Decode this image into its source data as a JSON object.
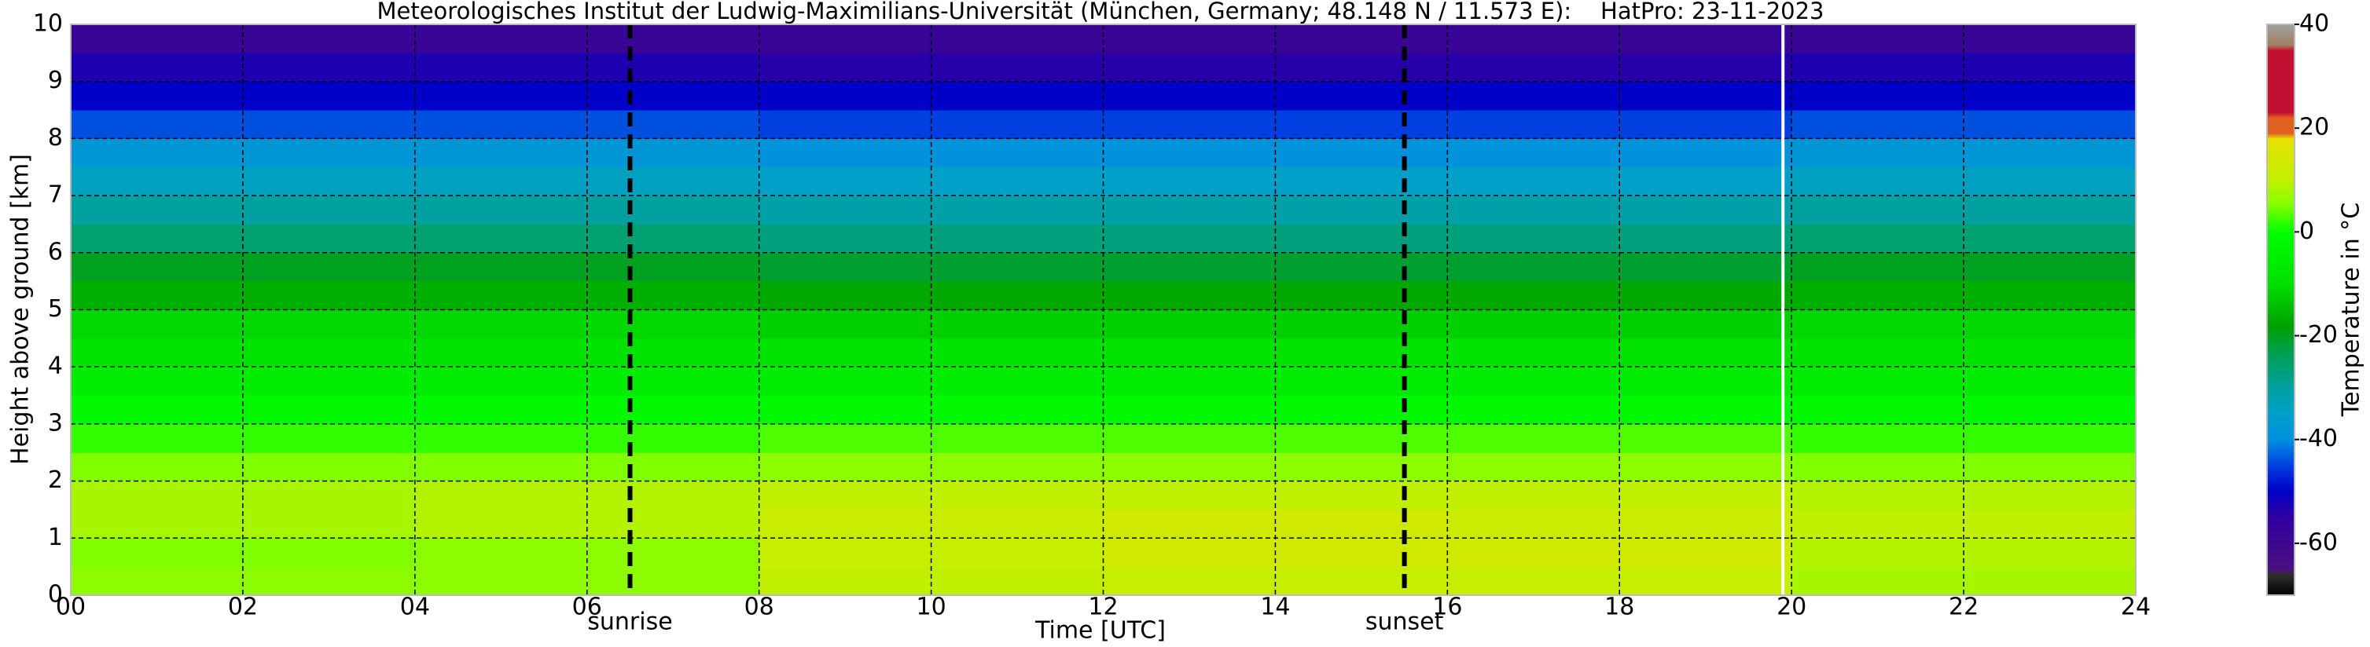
{
  "chart_data": {
    "type": "heatmap",
    "title": "Meteorologisches Institut der Ludwig-Maximilians-Universität (München, Germany; 48.148 N / 11.573 E):    HatPro: 23-11-2023",
    "xlabel": "Time [UTC]",
    "ylabel": "Height above ground [km]",
    "colorbar_label": "Temperature in °C",
    "x_bins": [
      0,
      4,
      8,
      12,
      16,
      20,
      24
    ],
    "y_bins": [
      0,
      0.5,
      1,
      1.5,
      2,
      2.5,
      3,
      3.5,
      4,
      4.5,
      5,
      5.5,
      6,
      6.5,
      7,
      7.5,
      8,
      8.5,
      9,
      9.5,
      10
    ],
    "values": [
      [
        6,
        5,
        8,
        8,
        5,
        2,
        -2,
        -6,
        -9,
        -11,
        -16,
        -20,
        -26,
        -30,
        -34,
        -38,
        -44,
        -50,
        -53,
        -58
      ],
      [
        6,
        6,
        9,
        9,
        5,
        2,
        -2,
        -6,
        -9,
        -11,
        -16,
        -20,
        -26,
        -30,
        -34,
        -38,
        -44,
        -50,
        -53,
        -58
      ],
      [
        10,
        11,
        12,
        10,
        6,
        3,
        -2,
        -6,
        -9,
        -12,
        -17,
        -21,
        -27,
        -31,
        -35,
        -39,
        -45,
        -50,
        -54,
        -58
      ],
      [
        11,
        13,
        13,
        10,
        6,
        3,
        -2,
        -6,
        -9,
        -12,
        -17,
        -21,
        -27,
        -31,
        -35,
        -39,
        -45,
        -50,
        -54,
        -58
      ],
      [
        11,
        13,
        12,
        10,
        6,
        3,
        -2,
        -6,
        -9,
        -12,
        -17,
        -21,
        -27,
        -31,
        -35,
        -39,
        -45,
        -50,
        -54,
        -58
      ],
      [
        8,
        9,
        10,
        9,
        5,
        2,
        -2,
        -6,
        -9,
        -11,
        -16,
        -20,
        -26,
        -30,
        -34,
        -38,
        -44,
        -50,
        -53,
        -58
      ]
    ],
    "xlim": [
      0,
      24
    ],
    "xticks": [
      {
        "value": 0,
        "label": "00"
      },
      {
        "value": 2,
        "label": "02"
      },
      {
        "value": 4,
        "label": "04"
      },
      {
        "value": 6,
        "label": "06"
      },
      {
        "value": 8,
        "label": "08"
      },
      {
        "value": 10,
        "label": "10"
      },
      {
        "value": 12,
        "label": "12"
      },
      {
        "value": 14,
        "label": "14"
      },
      {
        "value": 16,
        "label": "16"
      },
      {
        "value": 18,
        "label": "18"
      },
      {
        "value": 20,
        "label": "20"
      },
      {
        "value": 22,
        "label": "22"
      },
      {
        "value": 24,
        "label": "24"
      }
    ],
    "ylim": [
      0,
      10
    ],
    "yticks": [
      0,
      1,
      2,
      3,
      4,
      5,
      6,
      7,
      8,
      9,
      10
    ],
    "clim": [
      -70,
      40
    ],
    "cticks": [
      -60,
      -40,
      -20,
      0,
      20,
      40
    ],
    "colorscale": [
      {
        "value": -70,
        "color": "#000000"
      },
      {
        "value": -66,
        "color": "#303030"
      },
      {
        "value": -65,
        "color": "#4b1080"
      },
      {
        "value": -55,
        "color": "#3000a0"
      },
      {
        "value": -50,
        "color": "#0000c8"
      },
      {
        "value": -45,
        "color": "#0040e0"
      },
      {
        "value": -40,
        "color": "#0090e0"
      },
      {
        "value": -35,
        "color": "#00a0c8"
      },
      {
        "value": -30,
        "color": "#00a0a0"
      },
      {
        "value": -22,
        "color": "#00a040"
      },
      {
        "value": -18,
        "color": "#00a000"
      },
      {
        "value": -10,
        "color": "#00e000"
      },
      {
        "value": 0,
        "color": "#00ff00"
      },
      {
        "value": 5,
        "color": "#80ff00"
      },
      {
        "value": 10,
        "color": "#c0f000"
      },
      {
        "value": 18,
        "color": "#e8e000"
      },
      {
        "value": 19,
        "color": "#e06020"
      },
      {
        "value": 22,
        "color": "#e06020"
      },
      {
        "value": 23,
        "color": "#c01030"
      },
      {
        "value": 35,
        "color": "#c01030"
      },
      {
        "value": 36,
        "color": "#a08060"
      },
      {
        "value": 40,
        "color": "#a0a0a0"
      }
    ],
    "grid": true,
    "annotations": [
      {
        "text": "sunrise",
        "x": 6.5
      },
      {
        "text": "sunset",
        "x": 15.5
      }
    ],
    "gaps": [
      19.9
    ]
  }
}
